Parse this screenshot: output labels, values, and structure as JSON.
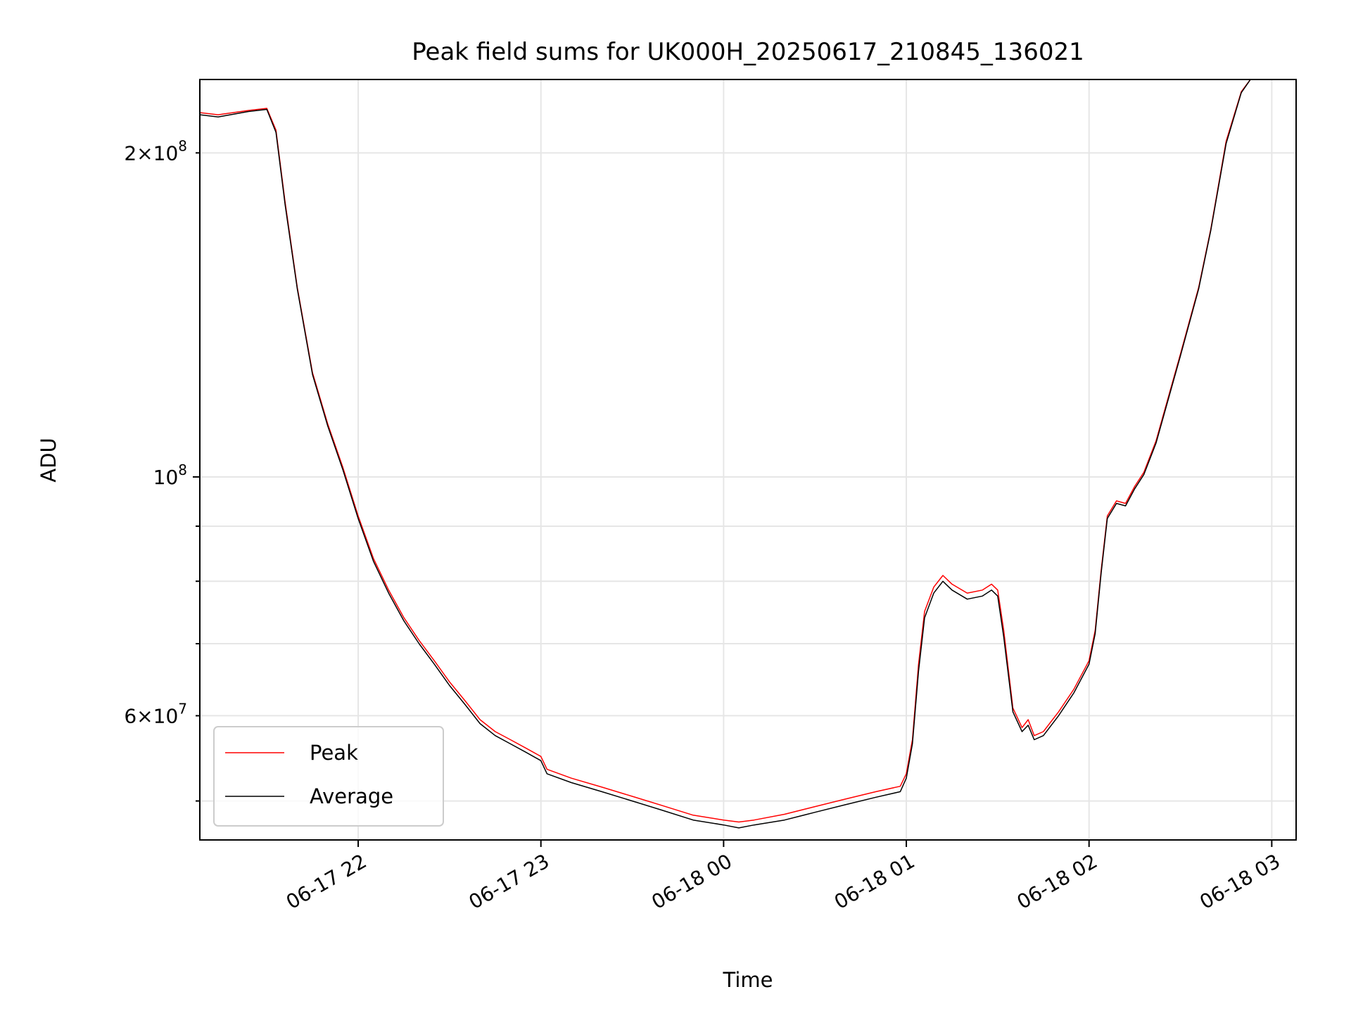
{
  "chart_data": {
    "type": "line",
    "title": "Peak field sums for UK000H_20250617_210845_136021",
    "xlabel": "Time",
    "ylabel": "ADU",
    "x_axis": {
      "kind": "datetime",
      "range": [
        "2025-06-17 21:08",
        "2025-06-18 03:08"
      ],
      "ticks": [
        {
          "value": "2025-06-17 22:00",
          "label": "06-17 22"
        },
        {
          "value": "2025-06-17 23:00",
          "label": "06-17 23"
        },
        {
          "value": "2025-06-18 00:00",
          "label": "06-18 00"
        },
        {
          "value": "2025-06-18 01:00",
          "label": "06-18 01"
        },
        {
          "value": "2025-06-18 02:00",
          "label": "06-18 02"
        },
        {
          "value": "2025-06-18 03:00",
          "label": "06-18 03"
        }
      ]
    },
    "y_axis": {
      "scale": "log",
      "range": [
        46000000,
        234000000
      ],
      "major_ticks": [
        {
          "value": 100000000,
          "mantissa": "",
          "exponent": "8"
        }
      ],
      "minor_ticks": [
        {
          "value": 50000000,
          "mantissa": "",
          "exponent": ""
        },
        {
          "value": 60000000,
          "mantissa": "6",
          "exponent": "7"
        },
        {
          "value": 70000000,
          "mantissa": "",
          "exponent": ""
        },
        {
          "value": 80000000,
          "mantissa": "",
          "exponent": ""
        },
        {
          "value": 90000000,
          "mantissa": "",
          "exponent": ""
        },
        {
          "value": 200000000,
          "mantissa": "2",
          "exponent": "8"
        }
      ]
    },
    "grid": true,
    "legend": {
      "position": "lower-left"
    },
    "series": [
      {
        "name": "Peak",
        "color": "#ff0000",
        "points": [
          [
            "2025-06-17 21:08",
            218000000
          ],
          [
            "2025-06-17 21:14",
            217000000
          ],
          [
            "2025-06-17 21:24",
            219000000
          ],
          [
            "2025-06-17 21:30",
            220000000
          ],
          [
            "2025-06-17 21:33",
            210000000
          ],
          [
            "2025-06-17 21:36",
            180000000
          ],
          [
            "2025-06-17 21:40",
            150000000
          ],
          [
            "2025-06-17 21:45",
            125000000
          ],
          [
            "2025-06-17 21:50",
            112000000
          ],
          [
            "2025-06-17 21:55",
            102000000
          ],
          [
            "2025-06-17 22:00",
            92000000
          ],
          [
            "2025-06-17 22:05",
            84000000
          ],
          [
            "2025-06-17 22:10",
            78500000
          ],
          [
            "2025-06-17 22:15",
            74000000
          ],
          [
            "2025-06-17 22:20",
            70500000
          ],
          [
            "2025-06-17 22:25",
            67500000
          ],
          [
            "2025-06-17 22:30",
            64500000
          ],
          [
            "2025-06-17 22:35",
            62000000
          ],
          [
            "2025-06-17 22:40",
            59500000
          ],
          [
            "2025-06-17 22:45",
            58000000
          ],
          [
            "2025-06-17 22:50",
            57000000
          ],
          [
            "2025-06-17 22:55",
            56000000
          ],
          [
            "2025-06-17 23:00",
            55000000
          ],
          [
            "2025-06-17 23:02",
            53500000
          ],
          [
            "2025-06-17 23:10",
            52500000
          ],
          [
            "2025-06-17 23:20",
            51500000
          ],
          [
            "2025-06-17 23:30",
            50500000
          ],
          [
            "2025-06-17 23:40",
            49500000
          ],
          [
            "2025-06-17 23:50",
            48500000
          ],
          [
            "2025-06-18 00:00",
            48000000
          ],
          [
            "2025-06-18 00:05",
            47800000
          ],
          [
            "2025-06-18 00:10",
            48000000
          ],
          [
            "2025-06-18 00:20",
            48600000
          ],
          [
            "2025-06-18 00:30",
            49400000
          ],
          [
            "2025-06-18 00:40",
            50200000
          ],
          [
            "2025-06-18 00:50",
            51000000
          ],
          [
            "2025-06-18 00:58",
            51600000
          ],
          [
            "2025-06-18 01:00",
            53000000
          ],
          [
            "2025-06-18 01:02",
            57000000
          ],
          [
            "2025-06-18 01:04",
            67000000
          ],
          [
            "2025-06-18 01:06",
            75000000
          ],
          [
            "2025-06-18 01:09",
            79000000
          ],
          [
            "2025-06-18 01:12",
            81000000
          ],
          [
            "2025-06-18 01:15",
            79500000
          ],
          [
            "2025-06-18 01:20",
            78000000
          ],
          [
            "2025-06-18 01:25",
            78500000
          ],
          [
            "2025-06-18 01:28",
            79500000
          ],
          [
            "2025-06-18 01:30",
            78500000
          ],
          [
            "2025-06-18 01:32",
            72000000
          ],
          [
            "2025-06-18 01:35",
            61000000
          ],
          [
            "2025-06-18 01:38",
            58500000
          ],
          [
            "2025-06-18 01:40",
            59500000
          ],
          [
            "2025-06-18 01:42",
            57500000
          ],
          [
            "2025-06-18 01:45",
            58000000
          ],
          [
            "2025-06-18 01:50",
            60500000
          ],
          [
            "2025-06-18 01:55",
            63500000
          ],
          [
            "2025-06-18 02:00",
            67500000
          ],
          [
            "2025-06-18 02:02",
            72000000
          ],
          [
            "2025-06-18 02:04",
            82000000
          ],
          [
            "2025-06-18 02:06",
            92000000
          ],
          [
            "2025-06-18 02:09",
            95000000
          ],
          [
            "2025-06-18 02:12",
            94500000
          ],
          [
            "2025-06-18 02:15",
            98000000
          ],
          [
            "2025-06-18 02:18",
            101000000
          ],
          [
            "2025-06-18 02:22",
            108000000
          ],
          [
            "2025-06-18 02:30",
            130000000
          ],
          [
            "2025-06-18 02:36",
            150000000
          ],
          [
            "2025-06-18 02:40",
            170000000
          ],
          [
            "2025-06-18 02:45",
            205000000
          ],
          [
            "2025-06-18 02:50",
            228000000
          ],
          [
            "2025-06-18 02:53",
            234000000
          ]
        ]
      },
      {
        "name": "Average",
        "color": "#000000",
        "points": [
          [
            "2025-06-17 21:08",
            217000000
          ],
          [
            "2025-06-17 21:14",
            216000000
          ],
          [
            "2025-06-17 21:24",
            218500000
          ],
          [
            "2025-06-17 21:30",
            219500000
          ],
          [
            "2025-06-17 21:33",
            209000000
          ],
          [
            "2025-06-17 21:36",
            179000000
          ],
          [
            "2025-06-17 21:40",
            149500000
          ],
          [
            "2025-06-17 21:45",
            124500000
          ],
          [
            "2025-06-17 21:50",
            111500000
          ],
          [
            "2025-06-17 21:55",
            101500000
          ],
          [
            "2025-06-17 22:00",
            91500000
          ],
          [
            "2025-06-17 22:05",
            83500000
          ],
          [
            "2025-06-17 22:10",
            78000000
          ],
          [
            "2025-06-17 22:15",
            73500000
          ],
          [
            "2025-06-17 22:20",
            70000000
          ],
          [
            "2025-06-17 22:25",
            67000000
          ],
          [
            "2025-06-17 22:30",
            64000000
          ],
          [
            "2025-06-17 22:35",
            61500000
          ],
          [
            "2025-06-17 22:40",
            59000000
          ],
          [
            "2025-06-17 22:45",
            57500000
          ],
          [
            "2025-06-17 22:50",
            56500000
          ],
          [
            "2025-06-17 22:55",
            55500000
          ],
          [
            "2025-06-17 23:00",
            54500000
          ],
          [
            "2025-06-17 23:02",
            53000000
          ],
          [
            "2025-06-17 23:10",
            52000000
          ],
          [
            "2025-06-17 23:20",
            51000000
          ],
          [
            "2025-06-17 23:30",
            50000000
          ],
          [
            "2025-06-17 23:40",
            49000000
          ],
          [
            "2025-06-17 23:50",
            48000000
          ],
          [
            "2025-06-18 00:00",
            47500000
          ],
          [
            "2025-06-18 00:05",
            47200000
          ],
          [
            "2025-06-18 00:10",
            47500000
          ],
          [
            "2025-06-18 00:20",
            48000000
          ],
          [
            "2025-06-18 00:30",
            48800000
          ],
          [
            "2025-06-18 00:40",
            49600000
          ],
          [
            "2025-06-18 00:50",
            50400000
          ],
          [
            "2025-06-18 00:58",
            51000000
          ],
          [
            "2025-06-18 01:00",
            52500000
          ],
          [
            "2025-06-18 01:02",
            56500000
          ],
          [
            "2025-06-18 01:04",
            66000000
          ],
          [
            "2025-06-18 01:06",
            74000000
          ],
          [
            "2025-06-18 01:09",
            78000000
          ],
          [
            "2025-06-18 01:12",
            80000000
          ],
          [
            "2025-06-18 01:15",
            78500000
          ],
          [
            "2025-06-18 01:20",
            77000000
          ],
          [
            "2025-06-18 01:25",
            77500000
          ],
          [
            "2025-06-18 01:28",
            78500000
          ],
          [
            "2025-06-18 01:30",
            77500000
          ],
          [
            "2025-06-18 01:32",
            71000000
          ],
          [
            "2025-06-18 01:35",
            60500000
          ],
          [
            "2025-06-18 01:38",
            58000000
          ],
          [
            "2025-06-18 01:40",
            58800000
          ],
          [
            "2025-06-18 01:42",
            57000000
          ],
          [
            "2025-06-18 01:45",
            57500000
          ],
          [
            "2025-06-18 01:50",
            60000000
          ],
          [
            "2025-06-18 01:55",
            63000000
          ],
          [
            "2025-06-18 02:00",
            67000000
          ],
          [
            "2025-06-18 02:02",
            71500000
          ],
          [
            "2025-06-18 02:04",
            81500000
          ],
          [
            "2025-06-18 02:06",
            91500000
          ],
          [
            "2025-06-18 02:09",
            94500000
          ],
          [
            "2025-06-18 02:12",
            94000000
          ],
          [
            "2025-06-18 02:15",
            97500000
          ],
          [
            "2025-06-18 02:18",
            100500000
          ],
          [
            "2025-06-18 02:22",
            107500000
          ],
          [
            "2025-06-18 02:30",
            129500000
          ],
          [
            "2025-06-18 02:36",
            149500000
          ],
          [
            "2025-06-18 02:40",
            169500000
          ],
          [
            "2025-06-18 02:45",
            204000000
          ],
          [
            "2025-06-18 02:50",
            227500000
          ],
          [
            "2025-06-18 02:53",
            234000000
          ]
        ]
      }
    ]
  }
}
